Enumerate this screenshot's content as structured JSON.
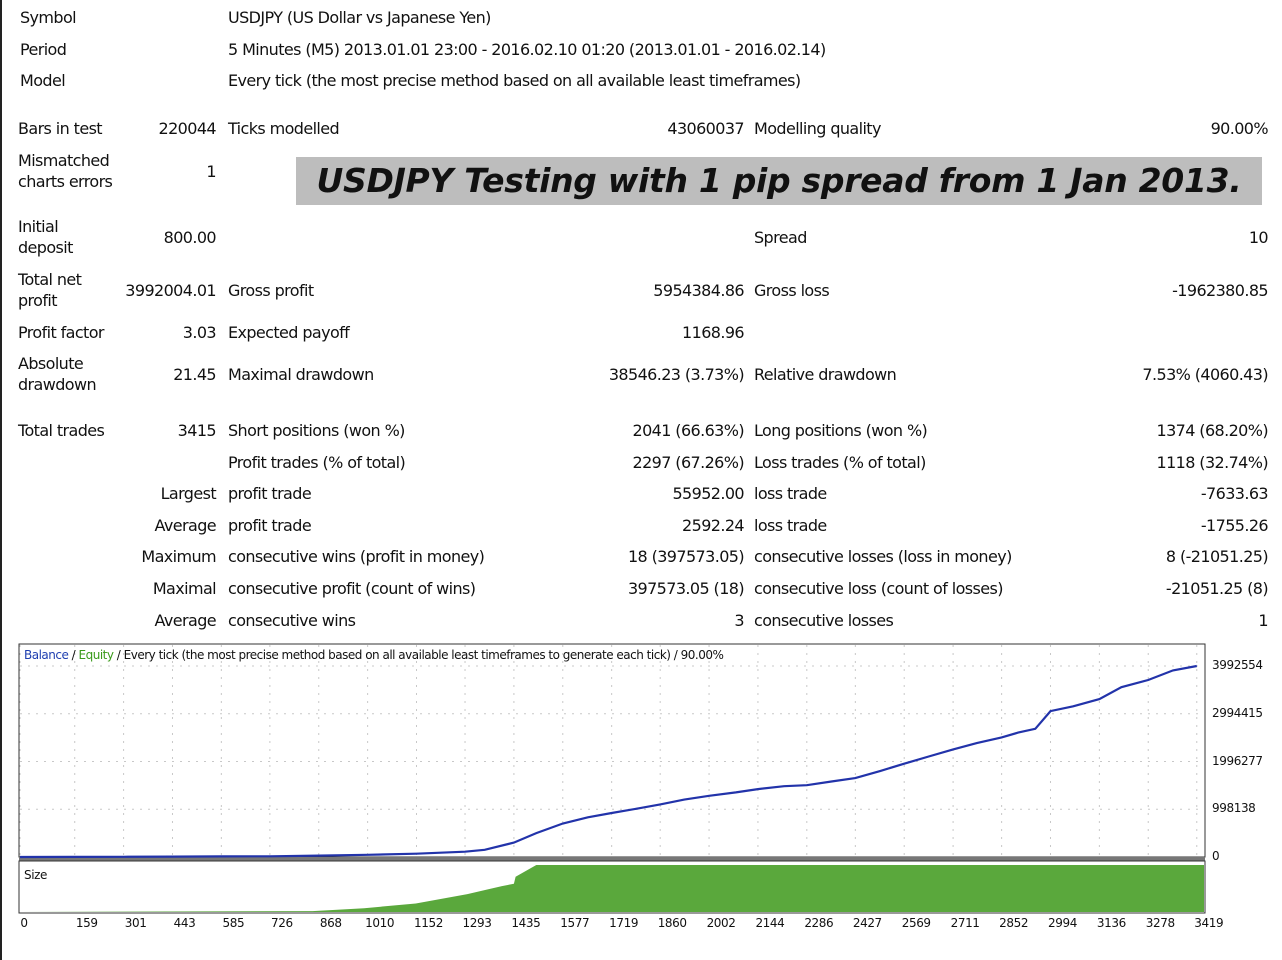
{
  "header": {
    "symbol_label": "Symbol",
    "symbol_value": "USDJPY (US Dollar vs Japanese Yen)",
    "period_label": "Period",
    "period_value": "5 Minutes (M5) 2013.01.01 23:00 - 2016.02.10 01:20 (2013.01.01 - 2016.02.14)",
    "model_label": "Model",
    "model_value": "Every tick (the most precise method based on all available least timeframes)"
  },
  "banner": "USDJPY Testing with 1 pip spread from 1 Jan 2013.",
  "stats": {
    "bars_in_test_label": "Bars in test",
    "bars_in_test": "220044",
    "ticks_modelled_label": "Ticks modelled",
    "ticks_modelled": "43060037",
    "modelling_quality_label": "Modelling quality",
    "modelling_quality": "90.00%",
    "mismatched_label_1": "Mismatched",
    "mismatched_label_2": "charts errors",
    "mismatched": "1",
    "initial_deposit_label_1": "Initial",
    "initial_deposit_label_2": "deposit",
    "initial_deposit": "800.00",
    "spread_label": "Spread",
    "spread": "10",
    "total_net_profit_label_1": "Total net",
    "total_net_profit_label_2": "profit",
    "total_net_profit": "3992004.01",
    "gross_profit_label": "Gross profit",
    "gross_profit": "5954384.86",
    "gross_loss_label": "Gross loss",
    "gross_loss": "-1962380.85",
    "profit_factor_label": "Profit factor",
    "profit_factor": "3.03",
    "expected_payoff_label": "Expected payoff",
    "expected_payoff": "1168.96",
    "absolute_drawdown_label_1": "Absolute",
    "absolute_drawdown_label_2": "drawdown",
    "absolute_drawdown": "21.45",
    "maximal_drawdown_label": "Maximal drawdown",
    "maximal_drawdown": "38546.23 (3.73%)",
    "relative_drawdown_label": "Relative drawdown",
    "relative_drawdown": "7.53% (4060.43)",
    "total_trades_label": "Total trades",
    "total_trades": "3415",
    "short_positions_label": "Short positions (won %)",
    "short_positions": "2041 (66.63%)",
    "long_positions_label": "Long positions (won %)",
    "long_positions": "1374 (68.20%)",
    "profit_trades_label": "Profit trades (% of total)",
    "profit_trades": "2297 (67.26%)",
    "loss_trades_label": "Loss trades (% of total)",
    "loss_trades": "1118 (32.74%)",
    "largest_label": "Largest",
    "largest_profit_label": "profit trade",
    "largest_profit": "55952.00",
    "largest_loss_label": "loss trade",
    "largest_loss": "-7633.63",
    "average_label": "Average",
    "average_profit_label": "profit trade",
    "average_profit": "2592.24",
    "average_loss_label": "loss trade",
    "average_loss": "-1755.26",
    "maximum_label": "Maximum",
    "max_consec_wins_label": "consecutive wins (profit in money)",
    "max_consec_wins": "18 (397573.05)",
    "max_consec_losses_label": "consecutive losses (loss in money)",
    "max_consec_losses": "8 (-21051.25)",
    "maximal_label": "Maximal",
    "maximal_consec_profit_label": "consecutive profit (count of wins)",
    "maximal_consec_profit": "397573.05 (18)",
    "maximal_consec_loss_label": "consecutive loss (count of losses)",
    "maximal_consec_loss": "-21051.25 (8)",
    "average2_label": "Average",
    "avg_consec_wins_label": "consecutive wins",
    "avg_consec_wins": "3",
    "avg_consec_losses_label": "consecutive losses",
    "avg_consec_losses": "1"
  },
  "chart_legend": {
    "balance": "Balance",
    "sep1": " / ",
    "equity": "Equity",
    "rest": " / Every tick (the most precise method based on all available least timeframes to generate each tick) / 90.00%"
  },
  "colors": {
    "balance": "#2233aa",
    "equity": "#3a9a1a",
    "size_fill": "#5aa83c",
    "banner_bg": "#bdbdbd"
  },
  "chart_data": {
    "type": "line",
    "series": [
      {
        "name": "Balance",
        "x": [
          0,
          159,
          301,
          443,
          585,
          726,
          868,
          1010,
          1152,
          1293,
          1350,
          1435,
          1500,
          1577,
          1650,
          1719,
          1800,
          1860,
          1930,
          2002,
          2080,
          2144,
          2220,
          2286,
          2360,
          2427,
          2500,
          2569,
          2640,
          2711,
          2780,
          2852,
          2900,
          2950,
          2994,
          3060,
          3136,
          3200,
          3278,
          3350,
          3419
        ],
        "values": [
          800,
          2000,
          5000,
          8000,
          12000,
          15000,
          30000,
          45000,
          70000,
          110000,
          150000,
          300000,
          500000,
          700000,
          830000,
          920000,
          1020000,
          1100000,
          1200000,
          1280000,
          1350000,
          1420000,
          1480000,
          1500000,
          1580000,
          1650000,
          1800000,
          1950000,
          2100000,
          2250000,
          2380000,
          2500000,
          2600000,
          2680000,
          3050000,
          3150000,
          3300000,
          3550000,
          3700000,
          3900000,
          3992004
        ]
      }
    ],
    "yticks": [
      "3992554",
      "2994415",
      "1996277",
      "998138",
      "0"
    ],
    "xticks": [
      "0",
      "159",
      "301",
      "443",
      "585",
      "726",
      "868",
      "1010",
      "1152",
      "1293",
      "1435",
      "1577",
      "1719",
      "1860",
      "2002",
      "2144",
      "2286",
      "2427",
      "2569",
      "2711",
      "2852",
      "2994",
      "3136",
      "3278",
      "3419"
    ],
    "xlim": [
      0,
      3440
    ],
    "ylim": [
      0,
      4200000
    ],
    "size_panel_label": "Size",
    "size_series": {
      "x": [
        0,
        850,
        1000,
        1150,
        1300,
        1400,
        1435,
        1440,
        1500,
        3440
      ],
      "values": [
        0,
        0.02,
        0.08,
        0.18,
        0.38,
        0.55,
        0.6,
        0.75,
        1,
        1
      ]
    }
  }
}
